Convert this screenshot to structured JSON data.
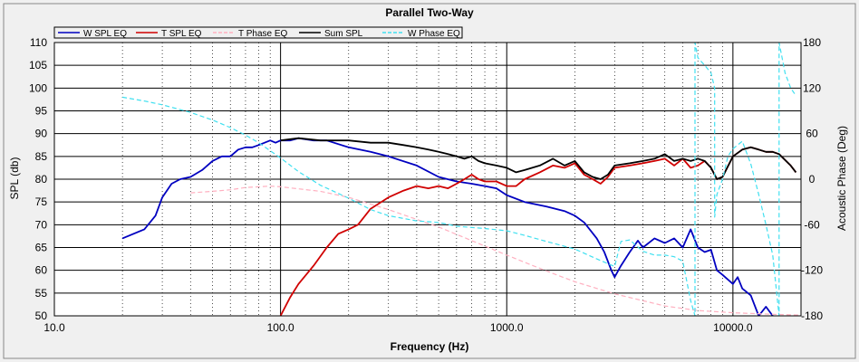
{
  "chart_data": {
    "type": "line",
    "title": "Parallel Two-Way",
    "xlabel": "Frequency (Hz)",
    "ylabel": "SPL (db)",
    "y2label": "Acoustic Phase (Deg)",
    "xscale": "log",
    "xlim": [
      10,
      20000
    ],
    "ylim": [
      50,
      110
    ],
    "y2lim": [
      -180,
      180
    ],
    "xticks": [
      10,
      100,
      1000,
      10000
    ],
    "xtick_labels": [
      "10.0",
      "100.0",
      "1000.0",
      "10000.0"
    ],
    "yticks": [
      50,
      55,
      60,
      65,
      70,
      75,
      80,
      85,
      90,
      95,
      100,
      105,
      110
    ],
    "ytick_labels": [
      "50",
      "55",
      "60",
      "65",
      "70",
      "75",
      "80",
      "85",
      "90",
      "95",
      "100",
      "105",
      "110"
    ],
    "y2ticks": [
      -180,
      -120,
      -60,
      0,
      60,
      120,
      180
    ],
    "y2tick_labels": [
      "-180",
      "-120",
      "-60",
      "0",
      "60",
      "120",
      "180"
    ],
    "grid": true,
    "legend_position": "top",
    "series": [
      {
        "name": "W SPL EQ",
        "color": "#0000c0",
        "axis": "left",
        "style": "solid",
        "x": [
          20,
          25,
          28,
          30,
          33,
          36,
          40,
          45,
          50,
          55,
          60,
          65,
          70,
          75,
          80,
          85,
          90,
          95,
          100,
          110,
          120,
          140,
          160,
          200,
          250,
          300,
          400,
          500,
          600,
          700,
          800,
          900,
          1000,
          1200,
          1500,
          1800,
          2000,
          2200,
          2500,
          2700,
          2900,
          3000,
          3200,
          3500,
          3800,
          4000,
          4500,
          5000,
          5500,
          6000,
          6500,
          7000,
          7500,
          8000,
          8500,
          9000,
          10000,
          10500,
          11000,
          12000,
          13000,
          14000,
          15000
        ],
        "y": [
          67,
          69,
          72,
          76,
          79,
          80,
          80.5,
          82,
          84,
          85,
          85,
          86.5,
          87,
          87,
          87.5,
          88,
          88.5,
          88,
          88.5,
          88.5,
          89,
          88.5,
          88.5,
          87,
          86,
          85,
          83,
          80.5,
          79.5,
          79,
          78.5,
          78,
          76.5,
          75,
          74,
          73,
          72,
          70.5,
          67,
          64,
          60,
          58.5,
          61,
          64,
          66.5,
          65,
          67,
          66,
          67,
          65,
          69,
          65,
          64,
          64.5,
          60,
          59,
          57,
          58.5,
          56,
          54.5,
          50,
          52,
          50
        ]
      },
      {
        "name": "T SPL EQ",
        "color": "#d00000",
        "axis": "left",
        "style": "solid",
        "x": [
          100,
          110,
          120,
          140,
          160,
          180,
          200,
          220,
          250,
          300,
          350,
          400,
          450,
          500,
          550,
          600,
          650,
          700,
          750,
          800,
          900,
          1000,
          1100,
          1200,
          1400,
          1600,
          1800,
          2000,
          2200,
          2400,
          2600,
          2800,
          3000,
          3500,
          4000,
          4500,
          5000,
          5500,
          6000,
          6500,
          7000,
          7500,
          8000,
          8500,
          9000,
          10000,
          11000,
          12000,
          13000,
          14000,
          15000,
          16000,
          18000,
          19000
        ],
        "y": [
          50,
          54,
          57,
          61,
          65,
          68,
          69,
          70,
          73.5,
          76,
          77.5,
          78.5,
          78,
          78.5,
          78,
          79,
          80,
          81,
          80,
          79.5,
          79.5,
          78.5,
          78.5,
          80,
          81.5,
          83,
          82.5,
          83.5,
          81,
          80,
          79,
          80.5,
          82.5,
          83,
          83.5,
          84,
          84.5,
          83,
          84.5,
          82.5,
          83,
          84,
          82.5,
          80,
          80.5,
          85,
          86.5,
          87,
          86.5,
          86,
          86,
          85.5,
          83,
          81.5
        ]
      },
      {
        "name": "T Phase EQ",
        "color": "#ffb0c0",
        "axis": "right",
        "style": "dashed",
        "x": [
          40,
          50,
          60,
          70,
          80,
          90,
          100,
          150,
          200,
          300,
          500,
          700,
          1000,
          1500,
          2000,
          3000,
          5000,
          7000,
          10000,
          15000,
          20000
        ],
        "y": [
          -18,
          -16,
          -14,
          -11,
          -10,
          -9,
          -10,
          -16,
          -24,
          -40,
          -63,
          -81,
          -100,
          -121,
          -135,
          -151,
          -167,
          -173,
          -176,
          -178,
          -179
        ]
      },
      {
        "name": "Sum SPL",
        "color": "#000000",
        "axis": "left",
        "style": "solid",
        "x": [
          100,
          120,
          150,
          200,
          250,
          300,
          350,
          400,
          450,
          500,
          550,
          600,
          650,
          700,
          750,
          800,
          900,
          1000,
          1100,
          1200,
          1400,
          1600,
          1800,
          2000,
          2200,
          2400,
          2600,
          2800,
          3000,
          3500,
          4000,
          4500,
          5000,
          5500,
          6000,
          6500,
          7000,
          7500,
          8000,
          8500,
          9000,
          10000,
          11000,
          12000,
          13000,
          14000,
          15000,
          16000,
          18000,
          19000
        ],
        "y": [
          88.5,
          89,
          88.5,
          88.5,
          88,
          88,
          87.5,
          87,
          86.5,
          86,
          85.5,
          85,
          84.5,
          85,
          84,
          83.5,
          83,
          82.5,
          81.5,
          82,
          83,
          84.5,
          83,
          84,
          81.5,
          80.5,
          80,
          81,
          83,
          83.5,
          84,
          84.5,
          85.5,
          84,
          84.5,
          84,
          84.5,
          84,
          82.5,
          80,
          80.5,
          85,
          86.5,
          87,
          86.5,
          86,
          86,
          85.5,
          83,
          81.5
        ]
      },
      {
        "name": "W Phase EQ",
        "color": "#40e0f0",
        "axis": "right",
        "style": "dashed",
        "x": [
          20,
          25,
          30,
          40,
          50,
          60,
          70,
          80,
          100,
          120,
          150,
          200,
          250,
          300,
          400,
          500,
          600,
          800,
          1000,
          1200,
          1500,
          2000,
          2500,
          3000,
          3200,
          3500,
          4000,
          4500,
          5000,
          5500,
          6000,
          6500,
          6800,
          6800,
          7000,
          7500,
          8000,
          8300,
          8300,
          8500,
          9000,
          9500,
          10000,
          11000,
          12000,
          13000,
          14000,
          15000,
          16000,
          16000,
          16500,
          17000,
          18000,
          19000
        ],
        "y": [
          108,
          103,
          98,
          88,
          78,
          68,
          58,
          48,
          28,
          10,
          -8,
          -25,
          -40,
          -48,
          -55,
          -57,
          -62,
          -65,
          -68,
          -74,
          -82,
          -92,
          -105,
          -115,
          -82,
          -80,
          -95,
          -100,
          -100,
          -102,
          -108,
          -160,
          -180,
          180,
          160,
          150,
          140,
          120,
          -50,
          -20,
          0,
          30,
          40,
          50,
          20,
          -20,
          -60,
          -100,
          -180,
          180,
          160,
          140,
          120,
          110
        ]
      }
    ]
  }
}
